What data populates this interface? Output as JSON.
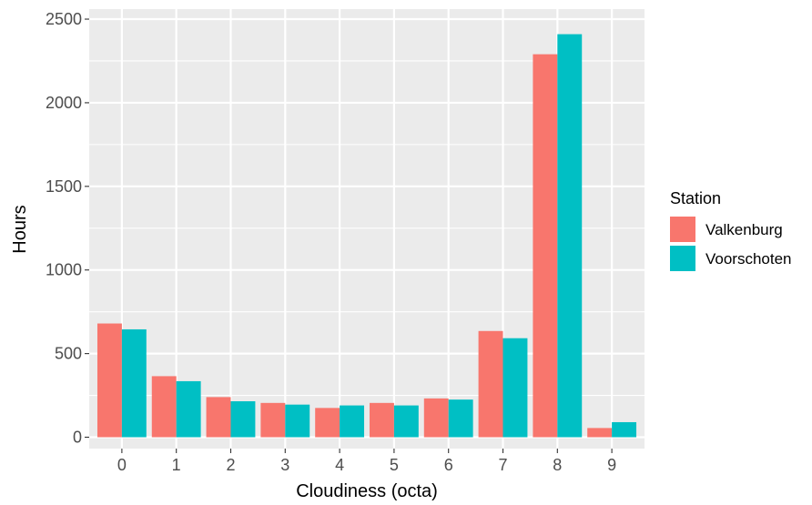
{
  "chart_data": {
    "type": "bar",
    "categories": [
      "0",
      "1",
      "2",
      "3",
      "4",
      "5",
      "6",
      "7",
      "8",
      "9"
    ],
    "series": [
      {
        "name": "Valkenburg",
        "color": "#F8766D",
        "values": [
          680,
          365,
          240,
          205,
          175,
          205,
          232,
          635,
          2290,
          55
        ]
      },
      {
        "name": "Voorschoten",
        "color": "#00BFC4",
        "values": [
          645,
          335,
          215,
          195,
          190,
          190,
          225,
          592,
          2410,
          90
        ]
      }
    ],
    "title": "",
    "xlabel": "Cloudiness (octa)",
    "ylabel": "Hours",
    "ylim": [
      -68,
      2560
    ],
    "yticks": [
      0,
      500,
      1000,
      1500,
      2000,
      2500
    ],
    "grid": true,
    "panel_background": "#EBEBEB",
    "legend": {
      "title": "Station",
      "placement": "right"
    }
  }
}
